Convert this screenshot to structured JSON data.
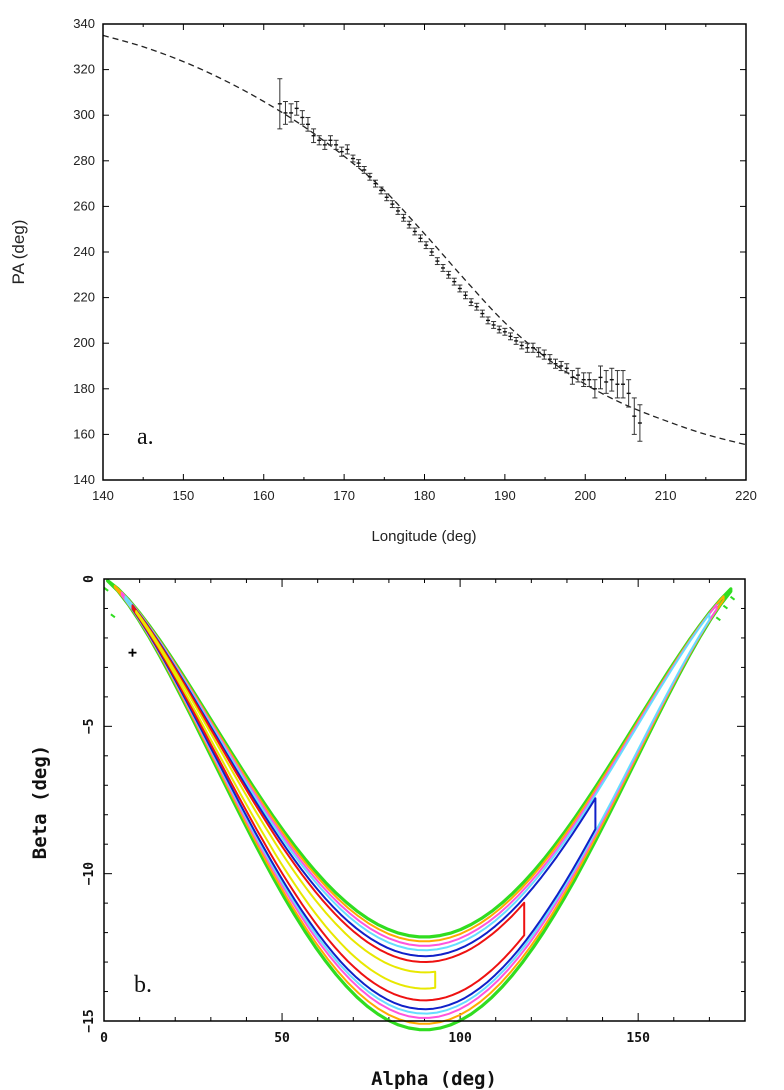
{
  "chart_data": [
    {
      "type": "scatter",
      "panel_label": "a.",
      "xlabel": "Longitude (deg)",
      "ylabel": "PA (deg)",
      "xlim": [
        140,
        220
      ],
      "ylim": [
        140,
        340
      ],
      "x_ticks": [
        140,
        150,
        160,
        170,
        180,
        190,
        200,
        210,
        220
      ],
      "y_ticks": [
        140,
        160,
        180,
        200,
        220,
        240,
        260,
        280,
        300,
        320,
        340
      ],
      "model_curve": {
        "style": "dashed",
        "x": [
          140,
          145,
          150,
          155,
          160,
          165,
          170,
          175,
          180,
          185,
          190,
          195,
          200,
          205,
          210,
          215,
          220
        ],
        "y": [
          335,
          330,
          323.5,
          315.5,
          306,
          295,
          282,
          267,
          248,
          228,
          209,
          194,
          182,
          173,
          166,
          160,
          155.5
        ]
      },
      "series": [
        {
          "name": "PA measurements",
          "x": [
            162,
            162.7,
            163.4,
            164.1,
            164.8,
            165.5,
            166.2,
            166.9,
            167.6,
            168.3,
            169.0,
            169.7,
            170.4,
            171.1,
            171.8,
            172.5,
            173.2,
            173.9,
            174.6,
            175.3,
            176.0,
            176.7,
            177.4,
            178.1,
            178.8,
            179.5,
            180.2,
            180.9,
            181.6,
            182.3,
            183.0,
            183.7,
            184.4,
            185.1,
            185.8,
            186.5,
            187.2,
            187.9,
            188.6,
            189.3,
            190.0,
            190.7,
            191.4,
            192.1,
            192.8,
            193.5,
            194.2,
            194.9,
            195.6,
            196.3,
            197.0,
            197.7,
            198.4,
            199.1,
            199.8,
            200.5,
            201.2,
            201.9,
            202.6,
            203.3,
            204.0,
            204.7,
            205.4,
            206.1,
            206.8
          ],
          "y": [
            305,
            301,
            301,
            303,
            299,
            296,
            291,
            289,
            287,
            289,
            287,
            284,
            285,
            281,
            279,
            276,
            273,
            270,
            267,
            264,
            261,
            258,
            255,
            252,
            249,
            246,
            243,
            240,
            236,
            233,
            230,
            227,
            224,
            221,
            218,
            216,
            213,
            210,
            208,
            206,
            205,
            203,
            201,
            199,
            198,
            198,
            196,
            195,
            193,
            191,
            190,
            189,
            185,
            186,
            184,
            184,
            180,
            185,
            183,
            184,
            182,
            182,
            178,
            168,
            165
          ],
          "err": [
            11,
            5,
            4,
            3,
            3,
            3,
            3,
            2,
            2,
            2,
            2,
            2,
            2,
            1.5,
            1.5,
            1.5,
            1.5,
            1.5,
            1.5,
            1.5,
            1.5,
            1.5,
            1.5,
            1.5,
            1.5,
            1.5,
            1.5,
            1.5,
            1.5,
            1.5,
            1.5,
            1.5,
            1.5,
            1.5,
            1.5,
            1.5,
            1.5,
            1.5,
            1.5,
            1.5,
            1.5,
            1.5,
            1.5,
            1.5,
            2,
            2,
            2,
            2,
            2,
            2,
            2,
            2,
            3,
            3,
            3,
            3,
            4,
            5,
            5,
            5,
            6,
            6,
            6,
            8,
            8
          ]
        }
      ]
    },
    {
      "type": "contour",
      "panel_label": "b.",
      "xlabel": "Alpha (deg)",
      "ylabel": "Beta (deg)",
      "xlim": [
        0,
        180
      ],
      "ylim": [
        -15,
        0
      ],
      "x_ticks": [
        0,
        50,
        100,
        150
      ],
      "y_ticks": [
        -15,
        -10,
        -5,
        0
      ],
      "contour_colors": [
        "#e8e800",
        "#ee1111",
        "#1020c8",
        "#66ddff",
        "#ff55dd",
        "#ffaa00",
        "#30dd20"
      ],
      "best_fit_marker": {
        "alpha": 8,
        "beta": -2.5
      },
      "valley_minimum": {
        "alpha": 88,
        "beta": -12.2,
        "upper_branch_bottom": -12.2,
        "lower_branch_bottom": -15.0
      },
      "contours": [
        {
          "name": "green outer",
          "color": "#30dd20",
          "type": "band",
          "a0": 1,
          "a1": 176,
          "inner_depth": 12.15,
          "outer_depth": 15.3
        },
        {
          "name": "orange",
          "color": "#ffaa00",
          "type": "band",
          "a0": 3,
          "a1": 174,
          "inner_depth": 12.3,
          "outer_depth": 15.1
        },
        {
          "name": "magenta",
          "color": "#ff55dd",
          "type": "band",
          "a0": 5,
          "a1": 172,
          "inner_depth": 12.45,
          "outer_depth": 14.9
        },
        {
          "name": "light blue",
          "color": "#66ddff",
          "type": "band",
          "a0": 6,
          "a1": 170,
          "inner_depth": 12.6,
          "outer_depth": 14.75
        },
        {
          "name": "blue",
          "color": "#1020c8",
          "type": "band",
          "a0": 8,
          "a1": 138,
          "inner_depth": 12.8,
          "outer_depth": 14.6
        },
        {
          "name": "red",
          "color": "#ee1111",
          "type": "lobe",
          "a0": 8,
          "a1": 118,
          "inner_depth": 13.0,
          "outer_depth": 14.3
        },
        {
          "name": "yellow",
          "color": "#e8e800",
          "type": "lobe",
          "a0": 9,
          "a1": 93,
          "inner_depth": 13.35,
          "outer_depth": 13.9
        }
      ]
    }
  ]
}
